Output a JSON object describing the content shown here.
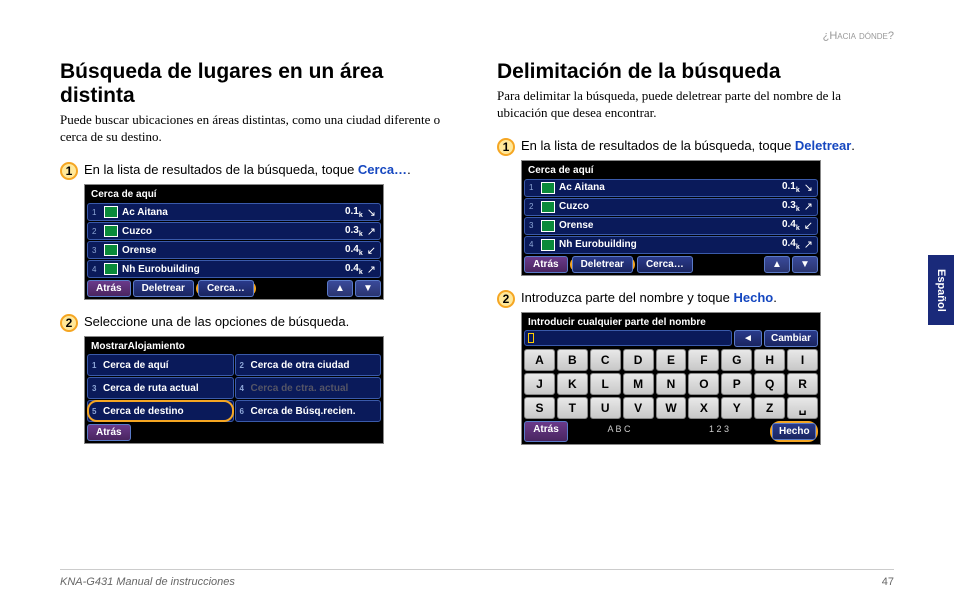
{
  "header": {
    "right": "¿Hacia dónde?"
  },
  "sideTab": "Español",
  "footer": {
    "manual": "KNA-G431 Manual de instrucciones",
    "page": "47"
  },
  "left": {
    "heading": "Búsqueda de lugares en un área distinta",
    "intro": "Puede buscar ubicaciones en áreas distintas, como una ciudad diferente o cerca de su destino.",
    "step1": {
      "num": "1",
      "text": "En la lista de resultados de la búsqueda, toque ",
      "accent": "Cerca…",
      "suffix": "."
    },
    "screen1": {
      "title": "Cerca de aquí",
      "rows": [
        {
          "idx": "1",
          "name": "Ac Aitana",
          "dist": "0.1",
          "unit": "k",
          "arrow": "↘"
        },
        {
          "idx": "2",
          "name": "Cuzco",
          "dist": "0.3",
          "unit": "k",
          "arrow": "↗"
        },
        {
          "idx": "3",
          "name": "Orense",
          "dist": "0.4",
          "unit": "k",
          "arrow": "↙"
        },
        {
          "idx": "4",
          "name": "Nh Eurobuilding",
          "dist": "0.4",
          "unit": "k",
          "arrow": "↗"
        }
      ],
      "buttons": {
        "back": "Atrás",
        "spell": "Deletrear",
        "near": "Cerca…",
        "up": "▲",
        "down": "▼"
      },
      "highlightIndex": 2
    },
    "step2": {
      "num": "2",
      "text": "Seleccione una de las opciones de búsqueda."
    },
    "screen2": {
      "title": "MostrarAlojamiento",
      "cells": [
        {
          "idx": "1",
          "label": "Cerca de aquí"
        },
        {
          "idx": "2",
          "label": "Cerca de otra ciudad"
        },
        {
          "idx": "3",
          "label": "Cerca de ruta actual"
        },
        {
          "idx": "4",
          "label": "Cerca de ctra. actual",
          "dim": true
        },
        {
          "idx": "5",
          "label": "Cerca de destino",
          "ring": true
        },
        {
          "idx": "6",
          "label": "Cerca de Búsq.recien."
        }
      ],
      "back": "Atrás"
    }
  },
  "right": {
    "heading": "Delimitación de la búsqueda",
    "intro": "Para delimitar la búsqueda, puede deletrear parte del nombre de la ubicación que desea encontrar.",
    "step1": {
      "num": "1",
      "text": "En la lista de resultados de la búsqueda, toque ",
      "accent": "Deletrear",
      "suffix": "."
    },
    "screen1": {
      "title": "Cerca de aquí",
      "rows": [
        {
          "idx": "1",
          "name": "Ac Aitana",
          "dist": "0.1",
          "unit": "k",
          "arrow": "↘"
        },
        {
          "idx": "2",
          "name": "Cuzco",
          "dist": "0.3",
          "unit": "k",
          "arrow": "↗"
        },
        {
          "idx": "3",
          "name": "Orense",
          "dist": "0.4",
          "unit": "k",
          "arrow": "↙"
        },
        {
          "idx": "4",
          "name": "Nh Eurobuilding",
          "dist": "0.4",
          "unit": "k",
          "arrow": "↗"
        }
      ],
      "buttons": {
        "back": "Atrás",
        "spell": "Deletrear",
        "near": "Cerca…",
        "up": "▲",
        "down": "▼"
      },
      "highlightIndex": 1
    },
    "step2": {
      "num": "2",
      "text": "Introduzca parte del nombre y toque ",
      "accent": "Hecho",
      "suffix": "."
    },
    "keyboard": {
      "title": "Introducir cualquier parte del nombre",
      "bksp": "◄",
      "change": "Cambiar",
      "rows": [
        [
          "A",
          "B",
          "C",
          "D",
          "E",
          "F",
          "G",
          "H",
          "I"
        ],
        [
          "J",
          "K",
          "L",
          "M",
          "N",
          "O",
          "P",
          "Q",
          "R"
        ],
        [
          "S",
          "T",
          "U",
          "V",
          "W",
          "X",
          "Y",
          "Z",
          "␣"
        ]
      ],
      "footer": {
        "back": "Atrás",
        "abc": "A B C",
        "num": "1 2 3",
        "done": "Hecho"
      }
    }
  }
}
